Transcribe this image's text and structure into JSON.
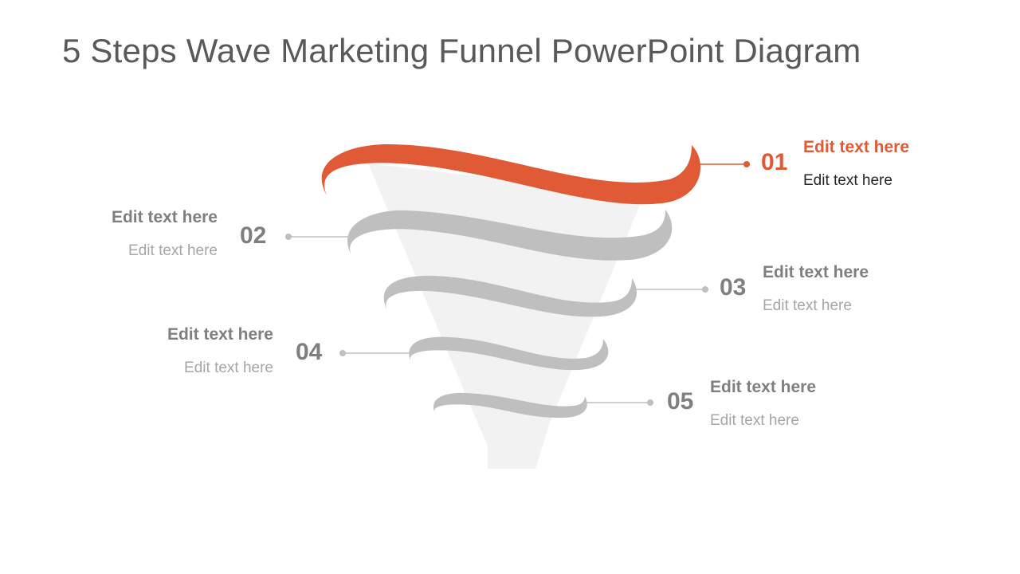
{
  "slide": {
    "title": "5 Steps Wave Marketing Funnel PowerPoint Diagram"
  },
  "colors": {
    "accent": "#e05a35",
    "ribbon_gray": "#bfbfbf",
    "funnel_fill": "#f2f2f2",
    "number_gray": "#7f7f7f",
    "subtext_gray": "#a6a6a6"
  },
  "steps": [
    {
      "number": "01",
      "heading": "Edit text here",
      "text": "Edit text here",
      "highlighted": true
    },
    {
      "number": "02",
      "heading": "Edit text here",
      "text": "Edit text here",
      "highlighted": false
    },
    {
      "number": "03",
      "heading": "Edit text here",
      "text": "Edit text here",
      "highlighted": false
    },
    {
      "number": "04",
      "heading": "Edit text here",
      "text": "Edit text here",
      "highlighted": false
    },
    {
      "number": "05",
      "heading": "Edit text here",
      "text": "Edit text here",
      "highlighted": false
    }
  ]
}
